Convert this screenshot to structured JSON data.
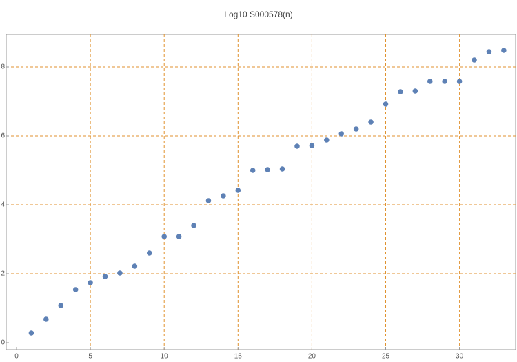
{
  "chart_data": {
    "type": "scatter",
    "title": "Log10 S000578(n)",
    "x": [
      1,
      2,
      3,
      4,
      5,
      6,
      7,
      8,
      9,
      10,
      11,
      12,
      13,
      14,
      15,
      16,
      17,
      18,
      19,
      20,
      21,
      22,
      23,
      24,
      25,
      26,
      27,
      28,
      29,
      30,
      31,
      32,
      33
    ],
    "values": [
      0.28,
      0.68,
      1.08,
      1.54,
      1.74,
      1.92,
      2.02,
      2.22,
      2.6,
      3.08,
      3.08,
      3.4,
      4.12,
      4.26,
      4.42,
      5.0,
      5.02,
      5.04,
      5.7,
      5.72,
      5.88,
      6.06,
      6.2,
      6.4,
      6.92,
      7.28,
      7.3,
      7.58,
      7.58,
      7.58,
      8.2,
      8.44,
      8.48
    ],
    "color": "#5e81b5",
    "grid_color": "#e0922f",
    "xlim": [
      -0.7,
      33.8
    ],
    "ylim": [
      -0.2,
      8.94
    ],
    "xticks": [
      0,
      5,
      10,
      15,
      20,
      25,
      30
    ],
    "yticks": [
      0,
      2,
      4,
      6,
      8
    ],
    "grid": true
  }
}
